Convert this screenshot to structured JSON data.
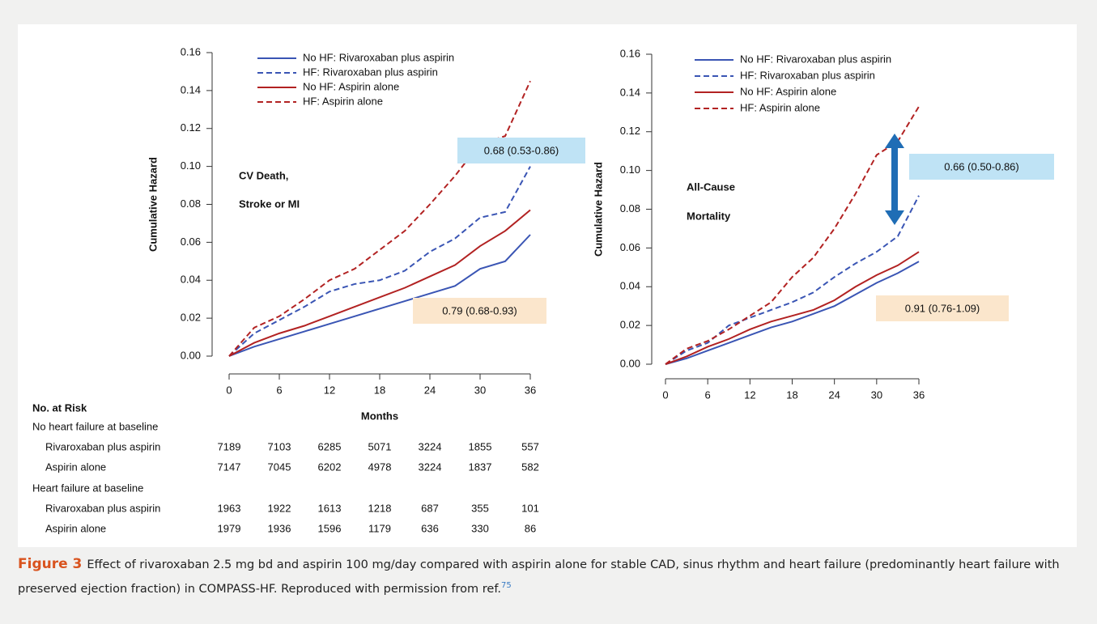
{
  "chart_data": [
    {
      "type": "line",
      "y_label": "Cumulative Hazard",
      "x_label": "Months",
      "annotation": [
        "CV Death,",
        "Stroke or MI"
      ],
      "x": [
        0,
        3,
        6,
        9,
        12,
        15,
        18,
        21,
        24,
        27,
        30,
        33,
        36
      ],
      "xlim": [
        0,
        36
      ],
      "xticks": [
        0,
        6,
        12,
        18,
        24,
        30,
        36
      ],
      "ylim": [
        0,
        0.16
      ],
      "yticks": [
        {
          "value": 0,
          "label": "0.00"
        },
        {
          "value": 0.02,
          "label": "0.02"
        },
        {
          "value": 0.04,
          "label": "0.04"
        },
        {
          "value": 0.06,
          "label": "0.06"
        },
        {
          "value": 0.08,
          "label": "0.08"
        },
        {
          "value": 0.1,
          "label": "0.10"
        },
        {
          "value": 0.12,
          "label": "0.12"
        },
        {
          "value": 0.14,
          "label": "0.14"
        },
        {
          "value": 0.16,
          "label": "0.16"
        }
      ],
      "series": [
        {
          "name": "No HF: Rivaroxaban plus aspirin",
          "color": "#3a55b4",
          "dash": false,
          "values": [
            0,
            0.005,
            0.009,
            0.013,
            0.017,
            0.021,
            0.025,
            0.029,
            0.033,
            0.037,
            0.046,
            0.05,
            0.064
          ]
        },
        {
          "name": "HF: Rivaroxaban plus aspirin",
          "color": "#3a55b4",
          "dash": true,
          "values": [
            0,
            0.012,
            0.019,
            0.026,
            0.034,
            0.038,
            0.04,
            0.045,
            0.055,
            0.062,
            0.073,
            0.076,
            0.1
          ]
        },
        {
          "name": "No HF: Aspirin alone",
          "color": "#b22222",
          "dash": false,
          "values": [
            0,
            0.007,
            0.012,
            0.016,
            0.021,
            0.026,
            0.031,
            0.036,
            0.042,
            0.048,
            0.058,
            0.066,
            0.077
          ]
        },
        {
          "name": "HF: Aspirin alone",
          "color": "#b22222",
          "dash": true,
          "values": [
            0,
            0.015,
            0.021,
            0.03,
            0.04,
            0.046,
            0.056,
            0.066,
            0.08,
            0.095,
            0.112,
            0.116,
            0.145
          ]
        }
      ],
      "hr_labels": [
        {
          "text": "0.68 (0.53-0.86)",
          "color": "#bfe3f5"
        },
        {
          "text": "0.79 (0.68-0.93)",
          "color": "#fbe6cc"
        }
      ]
    },
    {
      "type": "line",
      "y_label": "Cumulative Hazard",
      "annotation": [
        "All-Cause",
        "Mortality"
      ],
      "x": [
        0,
        3,
        6,
        9,
        12,
        15,
        18,
        21,
        24,
        27,
        30,
        33,
        36
      ],
      "xlim": [
        0,
        36
      ],
      "xticks": [
        0,
        6,
        12,
        18,
        24,
        30,
        36
      ],
      "ylim": [
        0,
        0.16
      ],
      "yticks": [
        {
          "value": 0,
          "label": "0.00"
        },
        {
          "value": 0.02,
          "label": "0.02"
        },
        {
          "value": 0.04,
          "label": "0.04"
        },
        {
          "value": 0.06,
          "label": "0.06"
        },
        {
          "value": 0.08,
          "label": "0.08"
        },
        {
          "value": 0.1,
          "label": "0.10"
        },
        {
          "value": 0.12,
          "label": "0.12"
        },
        {
          "value": 0.14,
          "label": "0.14"
        },
        {
          "value": 0.16,
          "label": "0.16"
        }
      ],
      "series": [
        {
          "name": "No HF: Rivaroxaban plus aspirin",
          "color": "#3a55b4",
          "dash": false,
          "values": [
            0,
            0.003,
            0.007,
            0.011,
            0.015,
            0.019,
            0.022,
            0.026,
            0.03,
            0.036,
            0.042,
            0.047,
            0.053
          ]
        },
        {
          "name": "HF: Rivaroxaban plus aspirin",
          "color": "#3a55b4",
          "dash": true,
          "values": [
            0,
            0.007,
            0.011,
            0.02,
            0.024,
            0.028,
            0.032,
            0.037,
            0.045,
            0.052,
            0.058,
            0.066,
            0.087
          ]
        },
        {
          "name": "No HF: Aspirin alone",
          "color": "#b22222",
          "dash": false,
          "values": [
            0,
            0.004,
            0.009,
            0.013,
            0.018,
            0.022,
            0.025,
            0.028,
            0.033,
            0.04,
            0.046,
            0.051,
            0.058
          ]
        },
        {
          "name": "HF: Aspirin alone",
          "color": "#b22222",
          "dash": true,
          "values": [
            0,
            0.008,
            0.012,
            0.018,
            0.025,
            0.032,
            0.045,
            0.055,
            0.07,
            0.088,
            0.108,
            0.115,
            0.133
          ]
        }
      ],
      "hr_labels": [
        {
          "text": "0.66 (0.50-0.86)",
          "color": "#bfe3f5"
        },
        {
          "text": "0.91 (0.76-1.09)",
          "color": "#fbe6cc"
        }
      ]
    }
  ],
  "risk_table": {
    "title": "No. at Risk",
    "groups": [
      {
        "label": "No heart failure at baseline",
        "rows": [
          {
            "label": "Rivaroxaban plus aspirin",
            "values": [
              7189,
              7103,
              6285,
              5071,
              3224,
              1855,
              557
            ]
          },
          {
            "label": "Aspirin alone",
            "values": [
              7147,
              7045,
              6202,
              4978,
              3224,
              1837,
              582
            ]
          }
        ]
      },
      {
        "label": "Heart failure at baseline",
        "rows": [
          {
            "label": "Rivaroxaban plus aspirin",
            "values": [
              1963,
              1922,
              1613,
              1218,
              687,
              355,
              101
            ]
          },
          {
            "label": "Aspirin alone",
            "values": [
              1979,
              1936,
              1596,
              1179,
              636,
              330,
              86
            ]
          }
        ]
      }
    ]
  },
  "caption": {
    "label": "Figure 3",
    "text": "Effect of rivaroxaban 2.5 mg bd and aspirin 100 mg/day compared with aspirin alone for stable CAD, sinus rhythm and heart failure (predominantly heart failure with preserved ejection fraction) in COMPASS-HF. Reproduced with permission from ref.",
    "ref": "75"
  }
}
